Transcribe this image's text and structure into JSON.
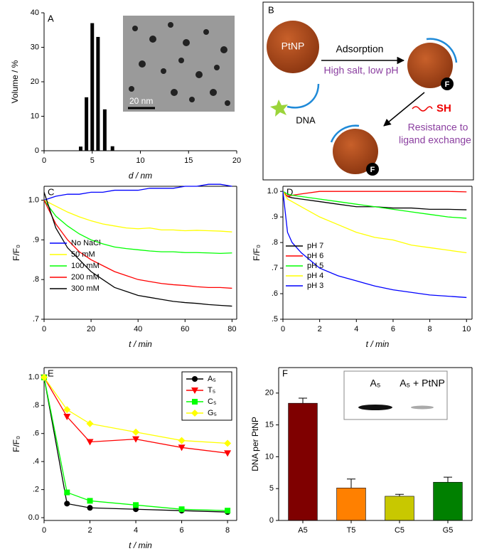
{
  "chart_data": [
    {
      "type": "bar",
      "panel": "A",
      "y_label": "Volume / %",
      "x_label": "d / nm",
      "x": [
        3.8,
        4.4,
        5.0,
        5.6,
        6.3,
        7.1
      ],
      "values": [
        1.2,
        15.5,
        37,
        33,
        12,
        1.3
      ],
      "color": "#000000",
      "xlim": [
        0,
        20
      ],
      "xticks": [
        0,
        5,
        10,
        15,
        20
      ],
      "ylim": [
        0,
        40
      ],
      "yticks": [
        0,
        10,
        20,
        30,
        40
      ],
      "inset_label": "20 nm",
      "box": false
    },
    {
      "type": "line",
      "panel": "C",
      "y_label": "F/F₀",
      "x_label": "t / min",
      "x": [
        0,
        5,
        10,
        15,
        20,
        25,
        30,
        35,
        40,
        45,
        50,
        55,
        60,
        65,
        70,
        75,
        80
      ],
      "series": [
        {
          "name": "No NaCl",
          "color": "#0000ff",
          "values": [
            1.0,
            1.01,
            1.015,
            1.015,
            1.02,
            1.02,
            1.025,
            1.025,
            1.025,
            1.03,
            1.03,
            1.03,
            1.035,
            1.035,
            1.04,
            1.04,
            1.035
          ]
        },
        {
          "name": "50 mM",
          "color": "#ffff00",
          "values": [
            1.0,
            0.985,
            0.97,
            0.958,
            0.948,
            0.94,
            0.935,
            0.93,
            0.928,
            0.93,
            0.925,
            0.925,
            0.923,
            0.924,
            0.923,
            0.922,
            0.92
          ]
        },
        {
          "name": "100 mM",
          "color": "#00ff00",
          "values": [
            1.0,
            0.96,
            0.935,
            0.915,
            0.9,
            0.89,
            0.882,
            0.878,
            0.875,
            0.872,
            0.87,
            0.87,
            0.868,
            0.868,
            0.867,
            0.866,
            0.867
          ]
        },
        {
          "name": "200 mM",
          "color": "#ff0000",
          "values": [
            1.0,
            0.94,
            0.9,
            0.87,
            0.85,
            0.835,
            0.82,
            0.81,
            0.8,
            0.795,
            0.79,
            0.787,
            0.785,
            0.782,
            0.78,
            0.78,
            0.778
          ]
        },
        {
          "name": "300 mM",
          "color": "#000000",
          "values": [
            1.02,
            0.93,
            0.88,
            0.85,
            0.82,
            0.8,
            0.78,
            0.77,
            0.76,
            0.755,
            0.75,
            0.745,
            0.742,
            0.74,
            0.737,
            0.735,
            0.733
          ]
        }
      ],
      "xlim": [
        0,
        82
      ],
      "xticks": [
        0,
        20,
        40,
        60,
        80
      ],
      "ylim": [
        0.7,
        1.035
      ],
      "yticks": [
        {
          "value": 0.7,
          "label": ".7"
        },
        {
          "value": 0.8,
          "label": ".8"
        },
        {
          "value": 0.9,
          "label": ".9"
        },
        {
          "value": 1.0,
          "label": "1.0"
        }
      ],
      "box": true
    },
    {
      "type": "line",
      "panel": "D",
      "y_label": "F/F₀",
      "x_label": "t / min",
      "x": [
        0,
        0.25,
        0.5,
        1,
        2,
        3,
        4,
        5,
        6,
        7,
        8,
        9,
        10
      ],
      "series": [
        {
          "name": "pH 7",
          "color": "#000000",
          "values": [
            1.0,
            0.98,
            0.975,
            0.97,
            0.96,
            0.95,
            0.94,
            0.94,
            0.935,
            0.935,
            0.93,
            0.93,
            0.928
          ]
        },
        {
          "name": "pH 6",
          "color": "#ff0000",
          "values": [
            1.0,
            0.98,
            0.985,
            0.99,
            1.0,
            1.0,
            1.0,
            1.0,
            1.0,
            1.0,
            1.0,
            1.0,
            0.998
          ]
        },
        {
          "name": "pH 5",
          "color": "#00ff00",
          "values": [
            1.0,
            0.99,
            0.985,
            0.98,
            0.97,
            0.96,
            0.95,
            0.94,
            0.93,
            0.92,
            0.91,
            0.9,
            0.895
          ]
        },
        {
          "name": "pH 4",
          "color": "#ffff00",
          "values": [
            1.0,
            0.97,
            0.96,
            0.94,
            0.9,
            0.87,
            0.84,
            0.82,
            0.81,
            0.79,
            0.78,
            0.77,
            0.76
          ]
        },
        {
          "name": "pH 3",
          "color": "#0000ff",
          "values": [
            1.0,
            0.84,
            0.8,
            0.76,
            0.7,
            0.67,
            0.65,
            0.63,
            0.615,
            0.605,
            0.595,
            0.59,
            0.585
          ]
        }
      ],
      "xlim": [
        0,
        10.3
      ],
      "xticks": [
        0,
        2,
        4,
        6,
        8,
        10
      ],
      "ylim": [
        0.5,
        1.02
      ],
      "yticks": [
        {
          "value": 0.5,
          "label": ".5"
        },
        {
          "value": 0.6,
          "label": ".6"
        },
        {
          "value": 0.7,
          "label": ".7"
        },
        {
          "value": 0.8,
          "label": ".8"
        },
        {
          "value": 0.9,
          "label": ".9"
        },
        {
          "value": 1.0,
          "label": "1.0"
        }
      ],
      "box": true
    },
    {
      "type": "line",
      "panel": "E",
      "y_label": "F/F₀",
      "x_label": "t / min",
      "x": [
        0,
        1,
        2,
        4,
        6,
        8
      ],
      "series": [
        {
          "name": "A₅",
          "color": "#000000",
          "marker": "circle",
          "values": [
            1.0,
            0.1,
            0.07,
            0.06,
            0.05,
            0.04
          ]
        },
        {
          "name": "T₅",
          "color": "#ff0000",
          "marker": "triangle-down",
          "values": [
            1.0,
            0.72,
            0.54,
            0.56,
            0.5,
            0.46
          ]
        },
        {
          "name": "C₅",
          "color": "#00ff00",
          "marker": "square",
          "values": [
            1.0,
            0.18,
            0.12,
            0.09,
            0.06,
            0.05
          ]
        },
        {
          "name": "G₅",
          "color": "#ffff00",
          "marker": "diamond",
          "values": [
            1.0,
            0.77,
            0.67,
            0.61,
            0.55,
            0.53
          ]
        }
      ],
      "xlim": [
        0,
        8.4
      ],
      "xticks": [
        0,
        2,
        4,
        6,
        8
      ],
      "ylim": [
        -0.02,
        1.07
      ],
      "yticks": [
        {
          "value": 0,
          "label": "0.0"
        },
        {
          "value": 0.2,
          "label": ".2"
        },
        {
          "value": 0.4,
          "label": ".4"
        },
        {
          "value": 0.6,
          "label": ".6"
        },
        {
          "value": 0.8,
          "label": ".8"
        },
        {
          "value": 1.0,
          "label": "1.0"
        }
      ],
      "box": true
    },
    {
      "type": "bar",
      "panel": "F",
      "y_label": "DNA per PtNP",
      "categories": [
        "A5",
        "T5",
        "C5",
        "G5"
      ],
      "values": [
        18.4,
        5.1,
        3.8,
        6.0
      ],
      "errors": [
        0.8,
        1.4,
        0.3,
        0.8
      ],
      "colors": [
        "#7f0000",
        "#ff8000",
        "#c8c800",
        "#008000"
      ],
      "ylim": [
        0,
        24
      ],
      "yticks": [
        0,
        5,
        10,
        15,
        20
      ],
      "inset_labels": [
        "A₅",
        "A₅ + PtNP"
      ],
      "box": true
    }
  ],
  "diagram": {
    "panel": "B",
    "particle_label": "PtNP",
    "arrow_label": "Adsorption",
    "condition": "High salt, low pH",
    "dna_label": "DNA",
    "thiol_label": "SH",
    "result_lines": [
      "Resistance to",
      "ligand exchange"
    ],
    "fluorophore": "F"
  }
}
